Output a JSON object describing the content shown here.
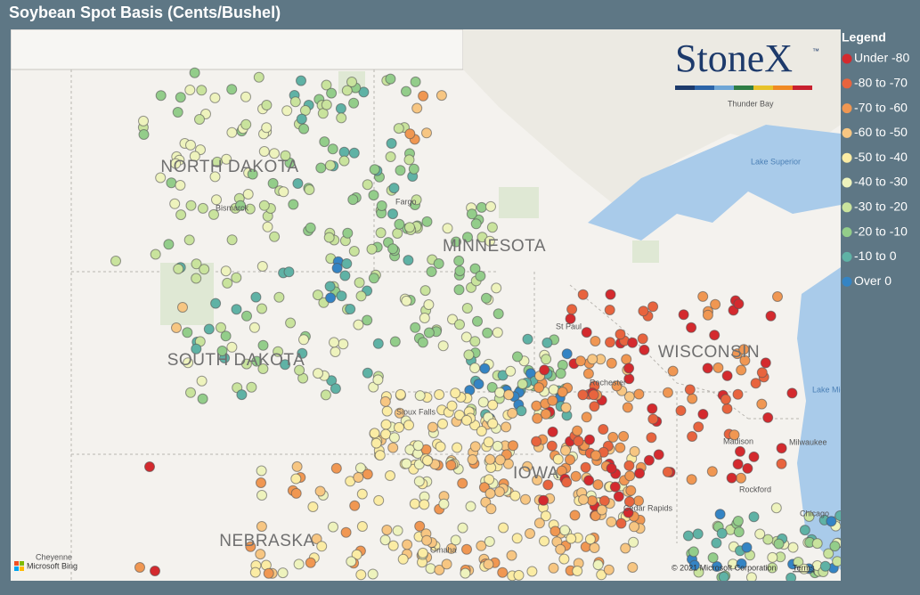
{
  "header": {
    "title": "Soybean Spot Basis (Cents/Bushel)"
  },
  "legend": {
    "title": "Legend",
    "items": [
      {
        "label": "Under -80",
        "color": "#d42a2e"
      },
      {
        "label": "-80 to -70",
        "color": "#e8643e"
      },
      {
        "label": "-70 to -60",
        "color": "#f09752"
      },
      {
        "label": "-60 to -50",
        "color": "#f7c682"
      },
      {
        "label": "-50 to -40",
        "color": "#fbeca4"
      },
      {
        "label": "-40 to -30",
        "color": "#eef3bd"
      },
      {
        "label": "-30 to -20",
        "color": "#c9e39d"
      },
      {
        "label": "-20 to -10",
        "color": "#93cd8a"
      },
      {
        "label": "-10 to 0",
        "color": "#5fb2a5"
      },
      {
        "label": "Over 0",
        "color": "#3484c4"
      }
    ]
  },
  "map": {
    "logo": "StoneX",
    "logo_mark": "™",
    "states": [
      "NORTH DAKOTA",
      "MINNESOTA",
      "SOUTH DAKOTA",
      "WISCONSIN",
      "IOWA",
      "NEBRASKA"
    ],
    "cities": [
      "Bismarck",
      "Fargo",
      "St Paul",
      "Rochester",
      "Thunder Bay",
      "Milwaukee",
      "Madison",
      "Rockford",
      "Cedar Rapids",
      "Chicago",
      "Omaha",
      "Sioux Falls",
      "Cheyenne"
    ],
    "water": [
      "Lake Superior",
      "Lake Michigan"
    ]
  },
  "footer": {
    "bing": "Microsoft Bing",
    "copyright": "© 2021 Microsoft Corporation",
    "terms": "Terms"
  }
}
